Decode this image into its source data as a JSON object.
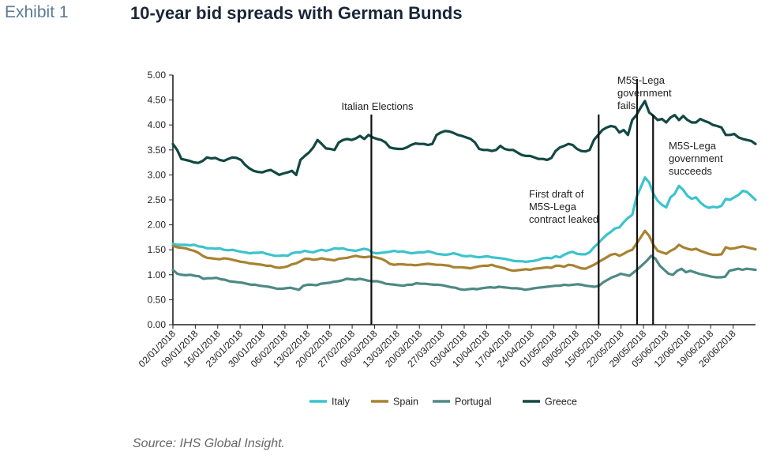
{
  "header": {
    "exhibit": "Exhibit 1",
    "title": "10-year bid spreads with German Bunds"
  },
  "source": "Source: IHS Global Insight.",
  "chart_data": {
    "type": "line",
    "title": "10-year bid spreads with German Bunds",
    "xlabel": "",
    "ylabel": "",
    "ylim": [
      0,
      5
    ],
    "yticks": [
      "0.00",
      "0.50",
      "1.00",
      "1.50",
      "2.00",
      "2.50",
      "3.00",
      "3.50",
      "4.00",
      "4.50",
      "5.00"
    ],
    "grid": false,
    "legend_position": "bottom",
    "x_start": "02/01/2018",
    "x_end": "03/07/2018",
    "xticks": [
      "02/01/2018",
      "09/01/2018",
      "16/01/2018",
      "23/01/2018",
      "30/01/2018",
      "06/02/2018",
      "13/02/2018",
      "20/02/2018",
      "27/02/2018",
      "06/03/2018",
      "13/03/2018",
      "20/03/2018",
      "27/03/2018",
      "03/04/2018",
      "10/04/2018",
      "17/04/2018",
      "24/04/2018",
      "01/05/2018",
      "08/05/2018",
      "15/05/2018",
      "22/05/2018",
      "29/05/2018",
      "05/06/2018",
      "12/06/2018",
      "19/06/2018",
      "26/06/2018"
    ],
    "series": [
      {
        "name": "Italy",
        "color": "#3cc3cd",
        "values": [
          1.62,
          1.6,
          1.6,
          1.6,
          1.59,
          1.6,
          1.57,
          1.56,
          1.53,
          1.53,
          1.52,
          1.53,
          1.5,
          1.49,
          1.5,
          1.48,
          1.46,
          1.45,
          1.43,
          1.44,
          1.44,
          1.45,
          1.42,
          1.4,
          1.38,
          1.38,
          1.39,
          1.38,
          1.43,
          1.45,
          1.45,
          1.48,
          1.46,
          1.45,
          1.48,
          1.5,
          1.48,
          1.5,
          1.53,
          1.52,
          1.53,
          1.5,
          1.49,
          1.48,
          1.5,
          1.52,
          1.5,
          1.44,
          1.43,
          1.44,
          1.45,
          1.46,
          1.48,
          1.46,
          1.47,
          1.45,
          1.43,
          1.44,
          1.45,
          1.45,
          1.47,
          1.45,
          1.42,
          1.41,
          1.4,
          1.41,
          1.43,
          1.41,
          1.38,
          1.37,
          1.38,
          1.36,
          1.35,
          1.36,
          1.37,
          1.35,
          1.34,
          1.33,
          1.32,
          1.3,
          1.28,
          1.27,
          1.27,
          1.26,
          1.27,
          1.28,
          1.3,
          1.33,
          1.34,
          1.33,
          1.37,
          1.35,
          1.4,
          1.44,
          1.46,
          1.42,
          1.41,
          1.41,
          1.45,
          1.55,
          1.63,
          1.72,
          1.8,
          1.86,
          1.93,
          1.95,
          2.05,
          2.14,
          2.2,
          2.55,
          2.75,
          2.95,
          2.85,
          2.62,
          2.48,
          2.4,
          2.35,
          2.55,
          2.62,
          2.78,
          2.7,
          2.58,
          2.52,
          2.55,
          2.45,
          2.38,
          2.34,
          2.36,
          2.35,
          2.38,
          2.52,
          2.5,
          2.55,
          2.6,
          2.68,
          2.66,
          2.58,
          2.5
        ]
      },
      {
        "name": "Spain",
        "color": "#a88232",
        "values": [
          1.58,
          1.55,
          1.54,
          1.53,
          1.5,
          1.48,
          1.44,
          1.38,
          1.34,
          1.33,
          1.32,
          1.31,
          1.33,
          1.32,
          1.3,
          1.28,
          1.26,
          1.25,
          1.23,
          1.22,
          1.21,
          1.2,
          1.18,
          1.18,
          1.15,
          1.14,
          1.15,
          1.17,
          1.21,
          1.23,
          1.27,
          1.32,
          1.32,
          1.3,
          1.31,
          1.33,
          1.31,
          1.3,
          1.29,
          1.32,
          1.33,
          1.34,
          1.36,
          1.38,
          1.36,
          1.35,
          1.36,
          1.36,
          1.34,
          1.32,
          1.28,
          1.22,
          1.2,
          1.21,
          1.21,
          1.2,
          1.2,
          1.19,
          1.2,
          1.21,
          1.22,
          1.21,
          1.2,
          1.2,
          1.19,
          1.18,
          1.15,
          1.15,
          1.15,
          1.14,
          1.13,
          1.15,
          1.17,
          1.18,
          1.18,
          1.2,
          1.17,
          1.15,
          1.13,
          1.1,
          1.08,
          1.09,
          1.1,
          1.11,
          1.1,
          1.12,
          1.13,
          1.14,
          1.15,
          1.14,
          1.18,
          1.18,
          1.16,
          1.2,
          1.19,
          1.16,
          1.13,
          1.12,
          1.16,
          1.2,
          1.25,
          1.3,
          1.35,
          1.4,
          1.42,
          1.38,
          1.42,
          1.47,
          1.5,
          1.62,
          1.75,
          1.88,
          1.78,
          1.6,
          1.48,
          1.45,
          1.42,
          1.48,
          1.52,
          1.6,
          1.55,
          1.52,
          1.5,
          1.52,
          1.48,
          1.45,
          1.42,
          1.4,
          1.4,
          1.41,
          1.55,
          1.52,
          1.53,
          1.55,
          1.57,
          1.55,
          1.53,
          1.51
        ]
      },
      {
        "name": "Portugal",
        "color": "#4e8985",
        "values": [
          1.1,
          1.02,
          1.0,
          0.99,
          1.0,
          0.98,
          0.97,
          0.92,
          0.93,
          0.93,
          0.94,
          0.91,
          0.9,
          0.87,
          0.86,
          0.85,
          0.84,
          0.82,
          0.8,
          0.8,
          0.78,
          0.77,
          0.76,
          0.74,
          0.72,
          0.72,
          0.73,
          0.74,
          0.72,
          0.7,
          0.78,
          0.8,
          0.8,
          0.79,
          0.82,
          0.83,
          0.84,
          0.86,
          0.87,
          0.89,
          0.92,
          0.91,
          0.9,
          0.92,
          0.9,
          0.88,
          0.87,
          0.87,
          0.85,
          0.82,
          0.81,
          0.8,
          0.79,
          0.78,
          0.8,
          0.8,
          0.83,
          0.82,
          0.82,
          0.81,
          0.8,
          0.8,
          0.79,
          0.77,
          0.75,
          0.74,
          0.71,
          0.7,
          0.71,
          0.72,
          0.71,
          0.73,
          0.74,
          0.75,
          0.74,
          0.76,
          0.75,
          0.74,
          0.73,
          0.73,
          0.72,
          0.7,
          0.71,
          0.73,
          0.74,
          0.75,
          0.76,
          0.77,
          0.78,
          0.78,
          0.8,
          0.79,
          0.8,
          0.81,
          0.8,
          0.78,
          0.77,
          0.76,
          0.78,
          0.85,
          0.9,
          0.95,
          0.98,
          1.02,
          1.0,
          0.98,
          1.05,
          1.12,
          1.2,
          1.28,
          1.38,
          1.32,
          1.18,
          1.1,
          1.02,
          1.0,
          1.08,
          1.12,
          1.05,
          1.08,
          1.05,
          1.02,
          1.0,
          0.98,
          0.96,
          0.95,
          0.95,
          0.96,
          1.08,
          1.1,
          1.12,
          1.1,
          1.12,
          1.11,
          1.1
        ]
      },
      {
        "name": "Greece",
        "color": "#124843",
        "values": [
          3.62,
          3.5,
          3.32,
          3.3,
          3.28,
          3.25,
          3.24,
          3.28,
          3.35,
          3.33,
          3.34,
          3.3,
          3.28,
          3.32,
          3.35,
          3.34,
          3.3,
          3.2,
          3.13,
          3.08,
          3.06,
          3.05,
          3.08,
          3.1,
          3.05,
          3.0,
          3.03,
          3.05,
          3.08,
          3.0,
          3.3,
          3.38,
          3.45,
          3.55,
          3.7,
          3.62,
          3.53,
          3.52,
          3.5,
          3.65,
          3.7,
          3.72,
          3.7,
          3.73,
          3.78,
          3.72,
          3.8,
          3.75,
          3.72,
          3.7,
          3.65,
          3.55,
          3.53,
          3.52,
          3.52,
          3.55,
          3.6,
          3.63,
          3.62,
          3.62,
          3.6,
          3.62,
          3.8,
          3.85,
          3.88,
          3.87,
          3.84,
          3.8,
          3.78,
          3.75,
          3.72,
          3.65,
          3.52,
          3.5,
          3.5,
          3.48,
          3.5,
          3.58,
          3.52,
          3.5,
          3.5,
          3.45,
          3.4,
          3.38,
          3.38,
          3.35,
          3.32,
          3.32,
          3.3,
          3.34,
          3.48,
          3.55,
          3.58,
          3.62,
          3.6,
          3.52,
          3.48,
          3.47,
          3.5,
          3.7,
          3.8,
          3.9,
          3.95,
          3.98,
          3.96,
          3.85,
          3.9,
          3.8,
          4.1,
          4.2,
          4.35,
          4.48,
          4.25,
          4.18,
          4.1,
          4.12,
          4.05,
          4.15,
          4.2,
          4.1,
          4.18,
          4.1,
          4.05,
          4.05,
          4.12,
          4.08,
          4.05,
          4.0,
          3.98,
          3.95,
          3.8,
          3.8,
          3.82,
          3.75,
          3.72,
          3.7,
          3.68,
          3.62
        ]
      }
    ],
    "annotations": [
      {
        "label": "Italian Elections",
        "date": "05/03/2018"
      },
      {
        "label_lines": [
          "First draft of",
          "M5S-Lega",
          "contract leaked"
        ],
        "date": "15/05/2018"
      },
      {
        "label_lines": [
          "M5S-Lega",
          "government",
          "fails"
        ],
        "date": "27/05/2018"
      },
      {
        "label_lines": [
          "M5S-Lega",
          "government",
          "succeeds"
        ],
        "date": "01/06/2018"
      }
    ]
  }
}
